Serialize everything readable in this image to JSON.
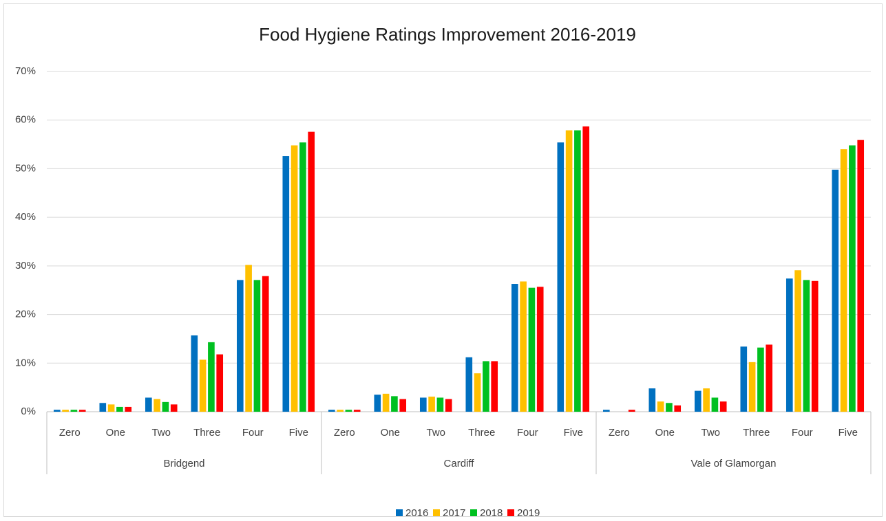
{
  "chart_data": {
    "type": "bar",
    "title": "Food Hygiene Ratings Improvement 2016-2019",
    "groups": [
      "Bridgend",
      "Cardiff",
      "Vale of Glamorgan"
    ],
    "categories": [
      "Zero",
      "One",
      "Two",
      "Three",
      "Four",
      "Five",
      "Zero",
      "One",
      "Two",
      "Three",
      "Four",
      "Five",
      "Zero",
      "One",
      "Two",
      "Three",
      "Four",
      "Five"
    ],
    "series": [
      {
        "name": "2016",
        "color": "#0070c0",
        "values": [
          0.4,
          1.8,
          2.9,
          15.7,
          27.1,
          52.6,
          0.4,
          3.5,
          2.9,
          11.2,
          26.3,
          55.4,
          0.4,
          4.8,
          4.3,
          13.4,
          27.4,
          49.8
        ]
      },
      {
        "name": "2017",
        "color": "#ffc000",
        "values": [
          0.4,
          1.5,
          2.6,
          10.7,
          30.2,
          54.8,
          0.4,
          3.7,
          3.1,
          7.9,
          26.8,
          57.9,
          0,
          2.1,
          4.8,
          10.2,
          29.1,
          54.0
        ]
      },
      {
        "name": "2018",
        "color": "#00c020",
        "values": [
          0.4,
          1.0,
          2.0,
          14.3,
          27.1,
          55.4,
          0.4,
          3.2,
          2.9,
          10.4,
          25.5,
          57.9,
          0,
          1.8,
          2.9,
          13.2,
          27.1,
          54.8
        ]
      },
      {
        "name": "2019",
        "color": "#ff0000",
        "values": [
          0.4,
          1.0,
          1.5,
          11.8,
          27.9,
          57.6,
          0.4,
          2.6,
          2.6,
          10.4,
          25.7,
          58.7,
          0.4,
          1.3,
          2.1,
          13.8,
          26.9,
          55.9
        ]
      }
    ],
    "ylim": [
      0,
      70
    ],
    "yticks": [
      {
        "value": 0,
        "label": "0%"
      },
      {
        "value": 10,
        "label": "10%"
      },
      {
        "value": 20,
        "label": "20%"
      },
      {
        "value": 30,
        "label": "30%"
      },
      {
        "value": 40,
        "label": "40%"
      },
      {
        "value": 50,
        "label": "50%"
      },
      {
        "value": 60,
        "label": "60%"
      },
      {
        "value": 70,
        "label": "70%"
      }
    ],
    "grid": true,
    "legend": "bottom"
  }
}
